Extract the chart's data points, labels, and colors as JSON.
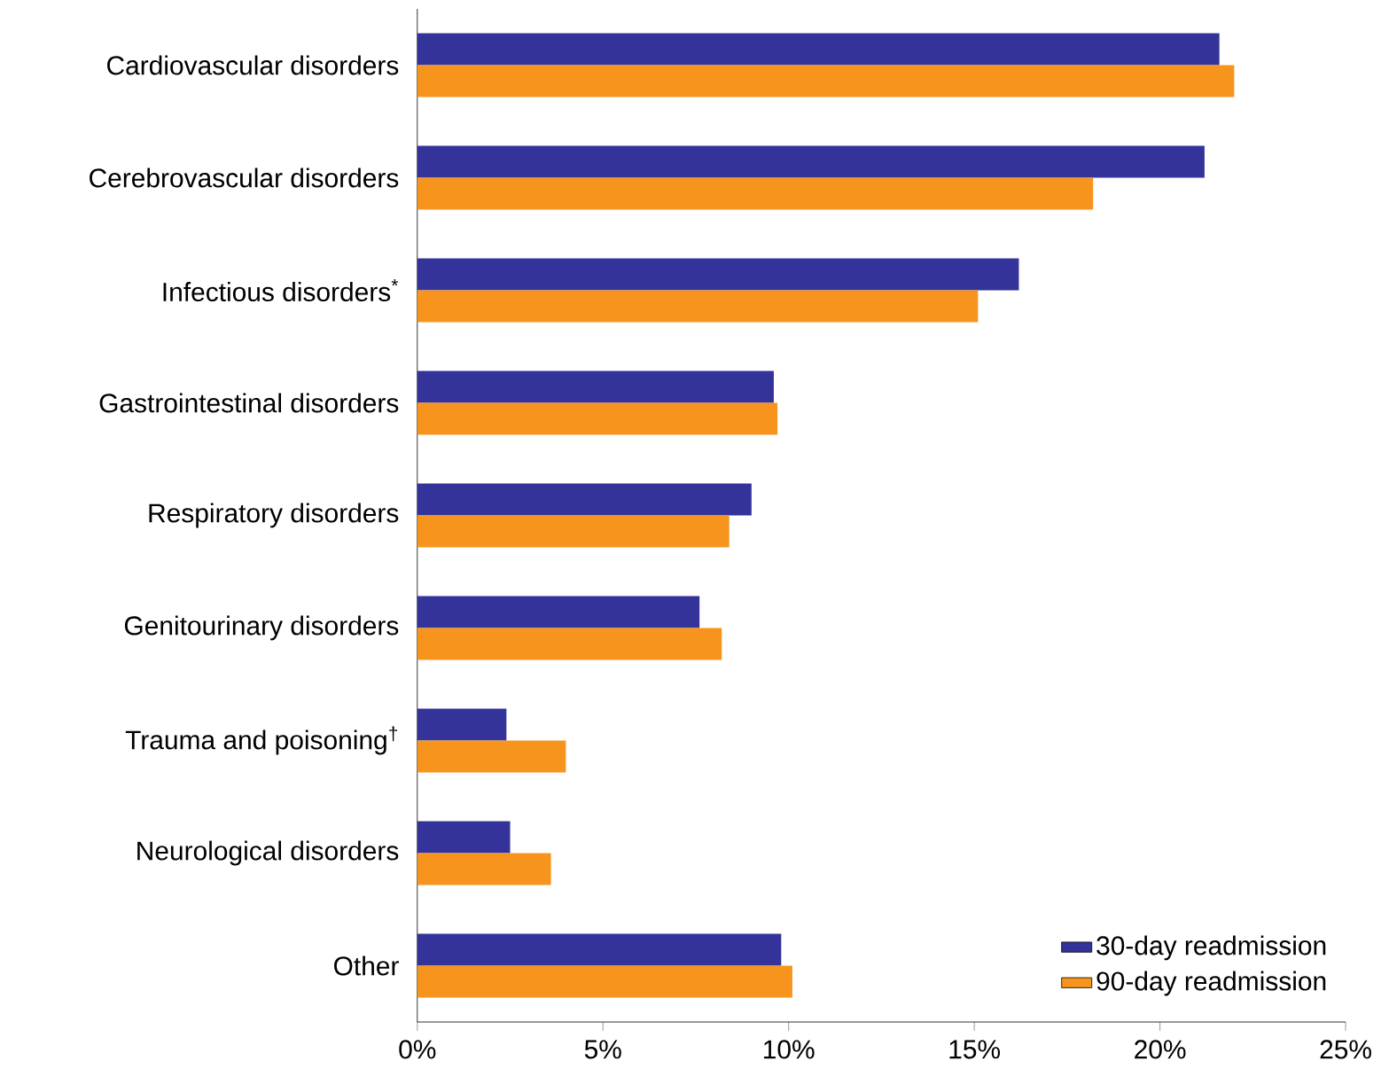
{
  "chart_data": {
    "type": "bar",
    "orientation": "horizontal",
    "categories": [
      "Cardiovascular disorders",
      "Cerebrovascular disorders",
      "Infectious disorders$^{*}$",
      "Gastrointestinal disorders",
      "Respiratory disorders",
      "Genitourinary disorders",
      "Trauma and poisoning$^{†}$",
      "Neurological disorders",
      "Other"
    ],
    "series": [
      {
        "name": "30-day readmission",
        "color": "#333399",
        "values": [
          21.6,
          21.2,
          16.2,
          9.6,
          9.0,
          7.6,
          2.4,
          2.5,
          9.8
        ]
      },
      {
        "name": "90-day readmission",
        "color": "#f7941d",
        "values": [
          22.0,
          18.2,
          15.1,
          9.7,
          8.4,
          8.2,
          4.0,
          3.6,
          10.1
        ]
      }
    ],
    "xlim": [
      0,
      25
    ],
    "xticks": [
      {
        "value": 0,
        "label": "0%"
      },
      {
        "value": 5,
        "label": "5%"
      },
      {
        "value": 10,
        "label": "10%"
      },
      {
        "value": 15,
        "label": "15%"
      },
      {
        "value": 20,
        "label": "20%"
      },
      {
        "value": 25,
        "label": "25%"
      }
    ],
    "grid": false,
    "legend": "bottom right"
  }
}
